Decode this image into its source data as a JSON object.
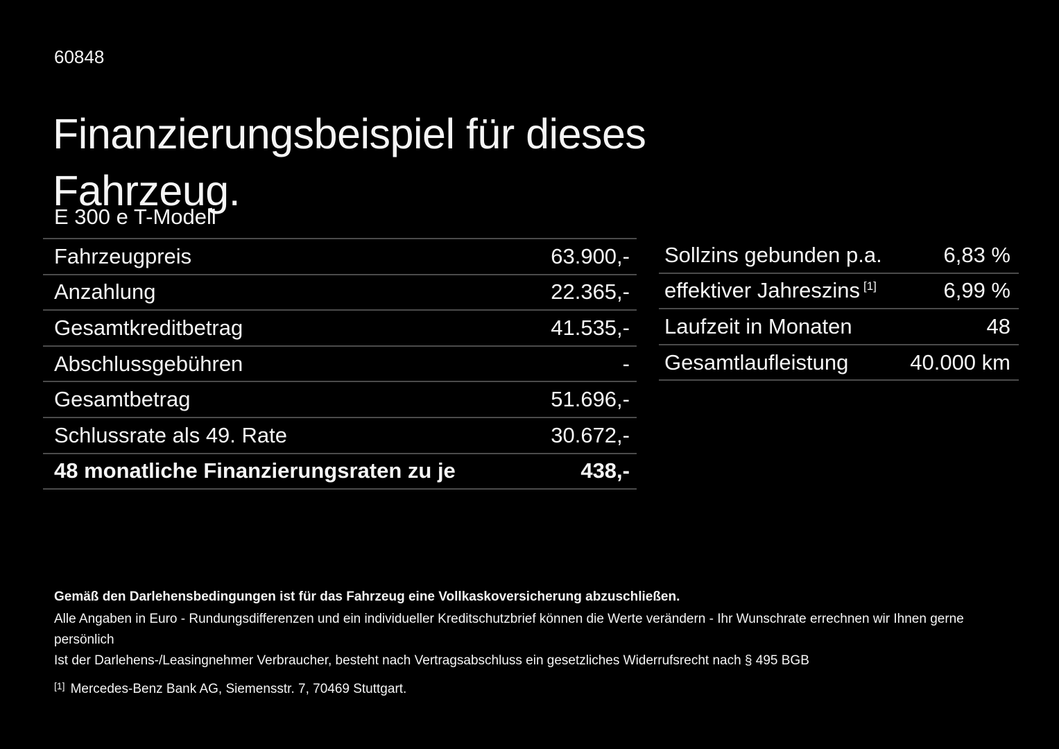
{
  "page": {
    "doc_number": "60848",
    "title": "Finanzierungsbeispiel für dieses Fahrzeug.",
    "model": "E 300 e T-Modell"
  },
  "finance_table": {
    "rows": [
      {
        "label": "Fahrzeugpreis",
        "value": "63.900,-",
        "bold": false
      },
      {
        "label": "Anzahlung",
        "value": "22.365,-",
        "bold": false
      },
      {
        "label": "Gesamtkreditbetrag",
        "value": "41.535,-",
        "bold": false
      },
      {
        "label": "Abschlussgebühren",
        "value": "-",
        "bold": false
      },
      {
        "label": "Gesamtbetrag",
        "value": "51.696,-",
        "bold": false
      },
      {
        "label": "Schlussrate als 49. Rate",
        "value": "30.672,-",
        "bold": false
      },
      {
        "label": "48 monatliche Finanzierungsraten zu je",
        "value": "438,-",
        "bold": true
      }
    ]
  },
  "conditions_table": {
    "rows": [
      {
        "label": "Sollzins gebunden p.a.",
        "value": "6,83 %"
      },
      {
        "label": "effektiver Jahreszins",
        "label_sup": "[1]",
        "value": "6,99 %"
      },
      {
        "label": "Laufzeit in Monaten",
        "value": "48"
      },
      {
        "label": "Gesamtlaufleistung",
        "value": "40.000 km"
      }
    ]
  },
  "footer": {
    "bold_note": "Gemäß den Darlehensbedingungen ist für das Fahrzeug eine Vollkaskoversicherung abzuschließen.",
    "note1": "Alle Angaben in Euro - Rundungsdifferenzen und ein individueller Kreditschutzbrief können die Werte verändern - Ihr Wunschrate errechnen wir Ihnen gerne persönlich",
    "note2": "Ist der Darlehens-/Leasingnehmer Verbraucher, besteht nach Vertragsabschluss ein gesetzliches Widerrufsrecht nach § 495 BGB",
    "footnote_marker": "[1]",
    "footnote_text": "Mercedes-Benz Bank AG, Siemensstr. 7, 70469 Stuttgart."
  },
  "colors": {
    "background": "#000000",
    "text": "#f5f5f5",
    "divider": "#4b4b4b"
  }
}
